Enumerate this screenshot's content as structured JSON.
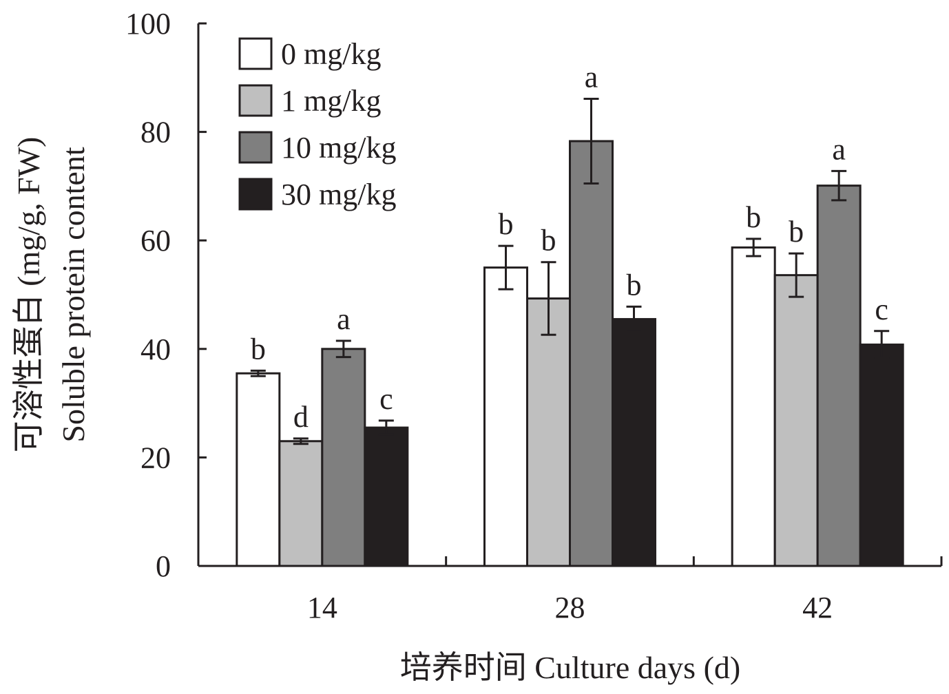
{
  "chart_data": {
    "type": "bar",
    "title": "",
    "xlabel": "培养时间 Culture days (d)",
    "ylabel_lines": [
      "可溶性蛋白 (mg/g, FW)",
      "Soluble protein content"
    ],
    "categories": [
      "14",
      "28",
      "42"
    ],
    "ylim": [
      0,
      100
    ],
    "yticks": [
      "0",
      "20",
      "40",
      "60",
      "80",
      "100"
    ],
    "grid": false,
    "legend_position": "top-left",
    "series": [
      {
        "name": "0 mg/kg",
        "color": "#ffffff",
        "values": [
          35.5,
          55.0,
          58.7
        ],
        "errors": [
          0.5,
          4.0,
          1.6
        ],
        "letters": [
          "b",
          "b",
          "b"
        ]
      },
      {
        "name": "1 mg/kg",
        "color": "#bfbfbf",
        "values": [
          23.0,
          49.3,
          53.6
        ],
        "errors": [
          0.5,
          6.7,
          4.0
        ],
        "letters": [
          "d",
          "b",
          "b"
        ]
      },
      {
        "name": "10 mg/kg",
        "color": "#7f7f7f",
        "values": [
          40.0,
          78.3,
          70.1
        ],
        "errors": [
          1.5,
          7.8,
          2.7
        ],
        "letters": [
          "a",
          "a",
          "a"
        ]
      },
      {
        "name": "30 mg/kg",
        "color": "#231f20",
        "values": [
          25.5,
          45.5,
          40.8
        ],
        "errors": [
          1.3,
          2.3,
          2.5
        ],
        "letters": [
          "c",
          "b",
          "c"
        ]
      }
    ]
  }
}
